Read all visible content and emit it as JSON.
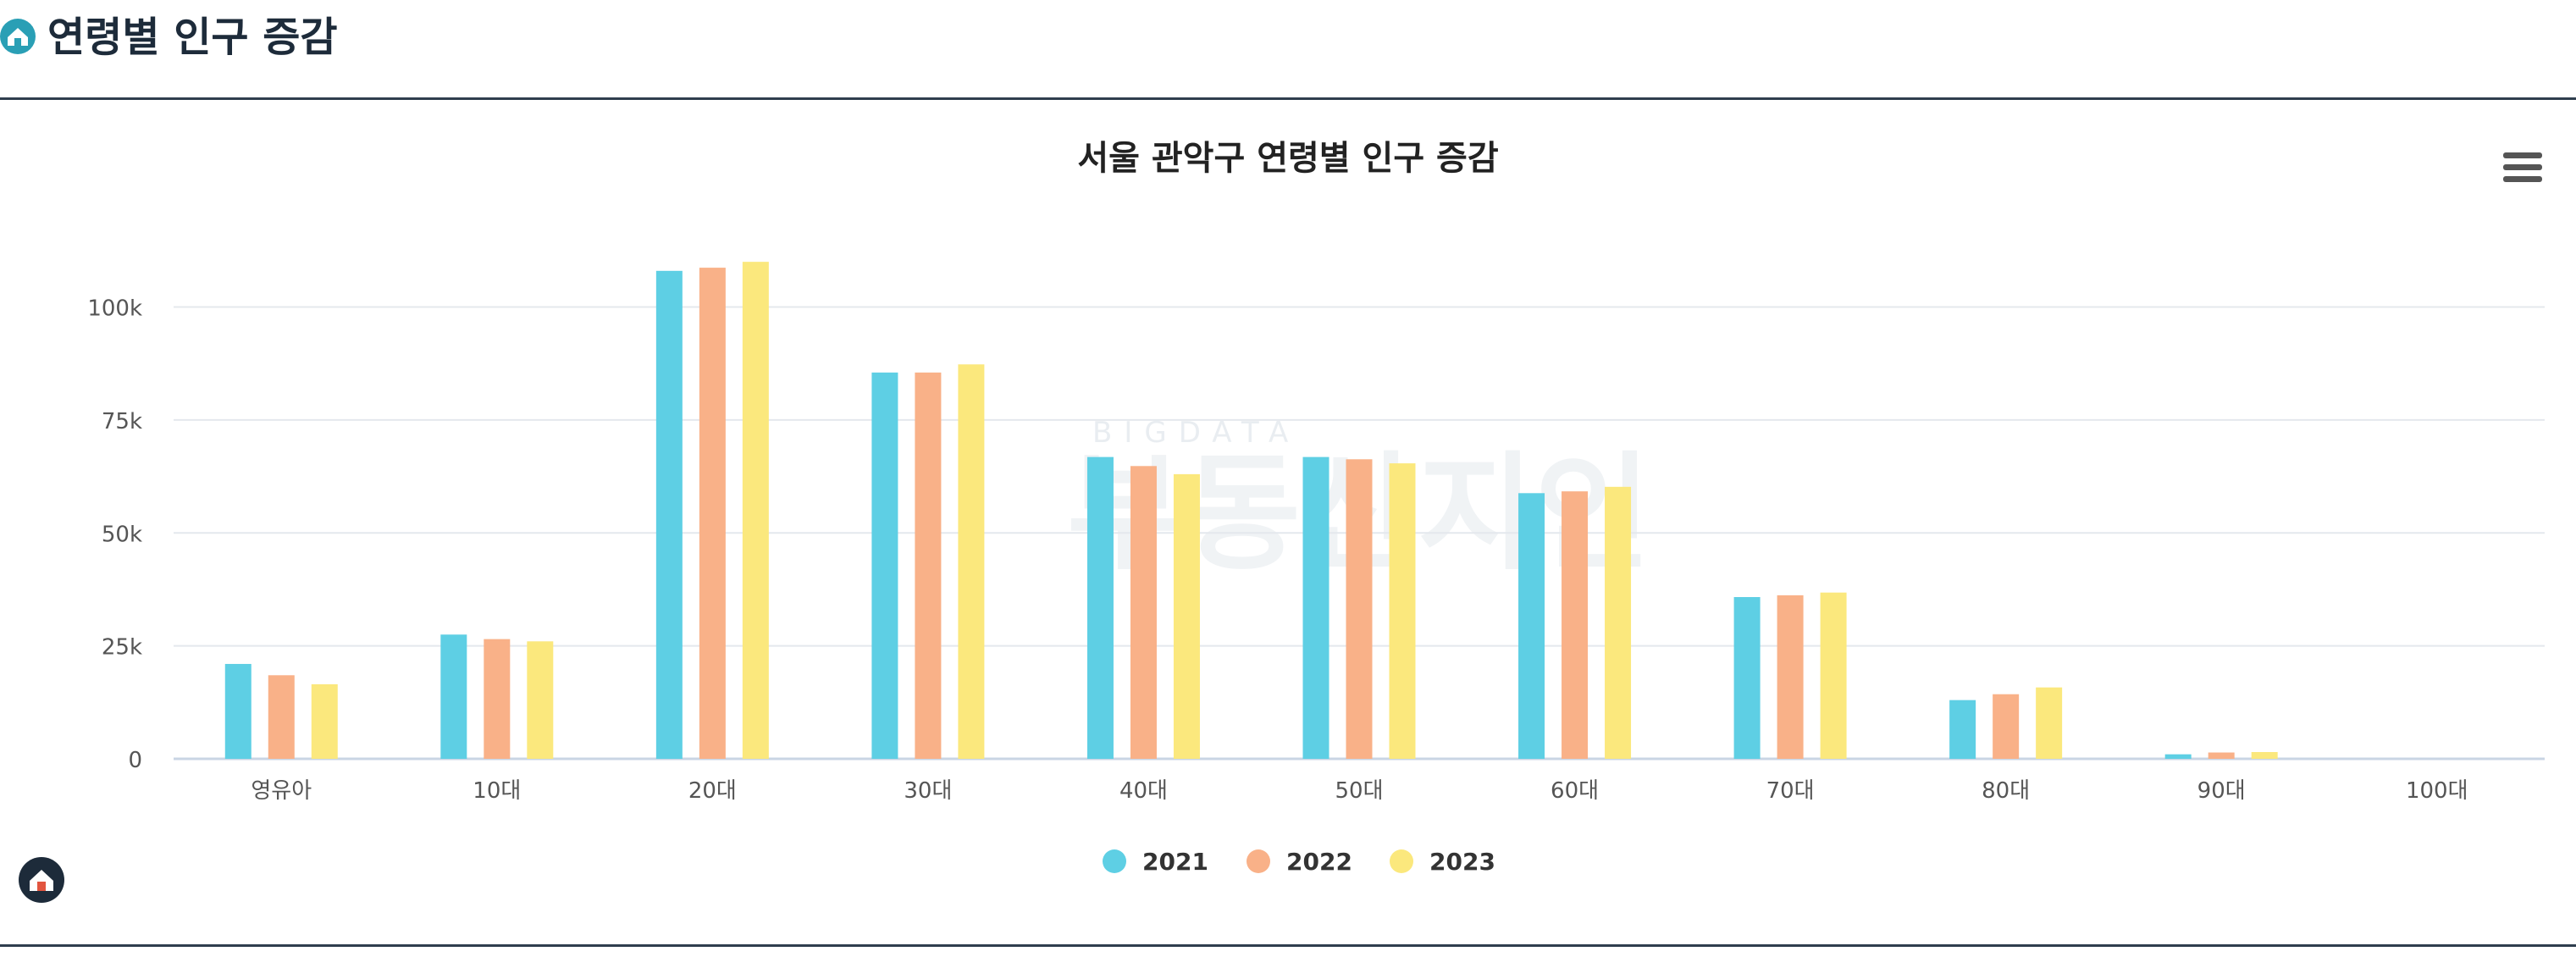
{
  "header": {
    "title": "연령별 인구 증감",
    "logo_icon": "home-badge-icon"
  },
  "menu_icon": "hamburger-menu-icon",
  "corner_icon": "home-badge-icon",
  "watermark": {
    "small": "BIGDATA",
    "large": "부동산지인"
  },
  "colors": {
    "s2021": "#5ecfe4",
    "s2022": "#f9b188",
    "s2023": "#fbe87d",
    "header_rule": "#2f3e4e"
  },
  "chart_data": {
    "type": "bar",
    "title": "서울 관악구 연령별 인구 증감",
    "categories": [
      "영유아",
      "10대",
      "20대",
      "30대",
      "40대",
      "50대",
      "60대",
      "70대",
      "80대",
      "90대",
      "100대"
    ],
    "series": [
      {
        "name": "2021",
        "values": [
          21000,
          27500,
          108000,
          85500,
          66800,
          66800,
          58800,
          35800,
          13000,
          1000,
          0
        ]
      },
      {
        "name": "2022",
        "values": [
          18500,
          26500,
          108700,
          85500,
          64800,
          66300,
          59200,
          36200,
          14300,
          1400,
          0
        ]
      },
      {
        "name": "2023",
        "values": [
          16500,
          26000,
          110000,
          87300,
          63000,
          65400,
          60200,
          36800,
          15800,
          1500,
          0
        ]
      }
    ],
    "yticks": [
      "0",
      "25k",
      "50k",
      "75k",
      "100k"
    ],
    "ytick_values": [
      0,
      25000,
      50000,
      75000,
      100000
    ],
    "ylim": [
      0,
      110000
    ],
    "xlabel": "",
    "ylabel": "",
    "grid": true,
    "legend_position": "bottom-center"
  }
}
